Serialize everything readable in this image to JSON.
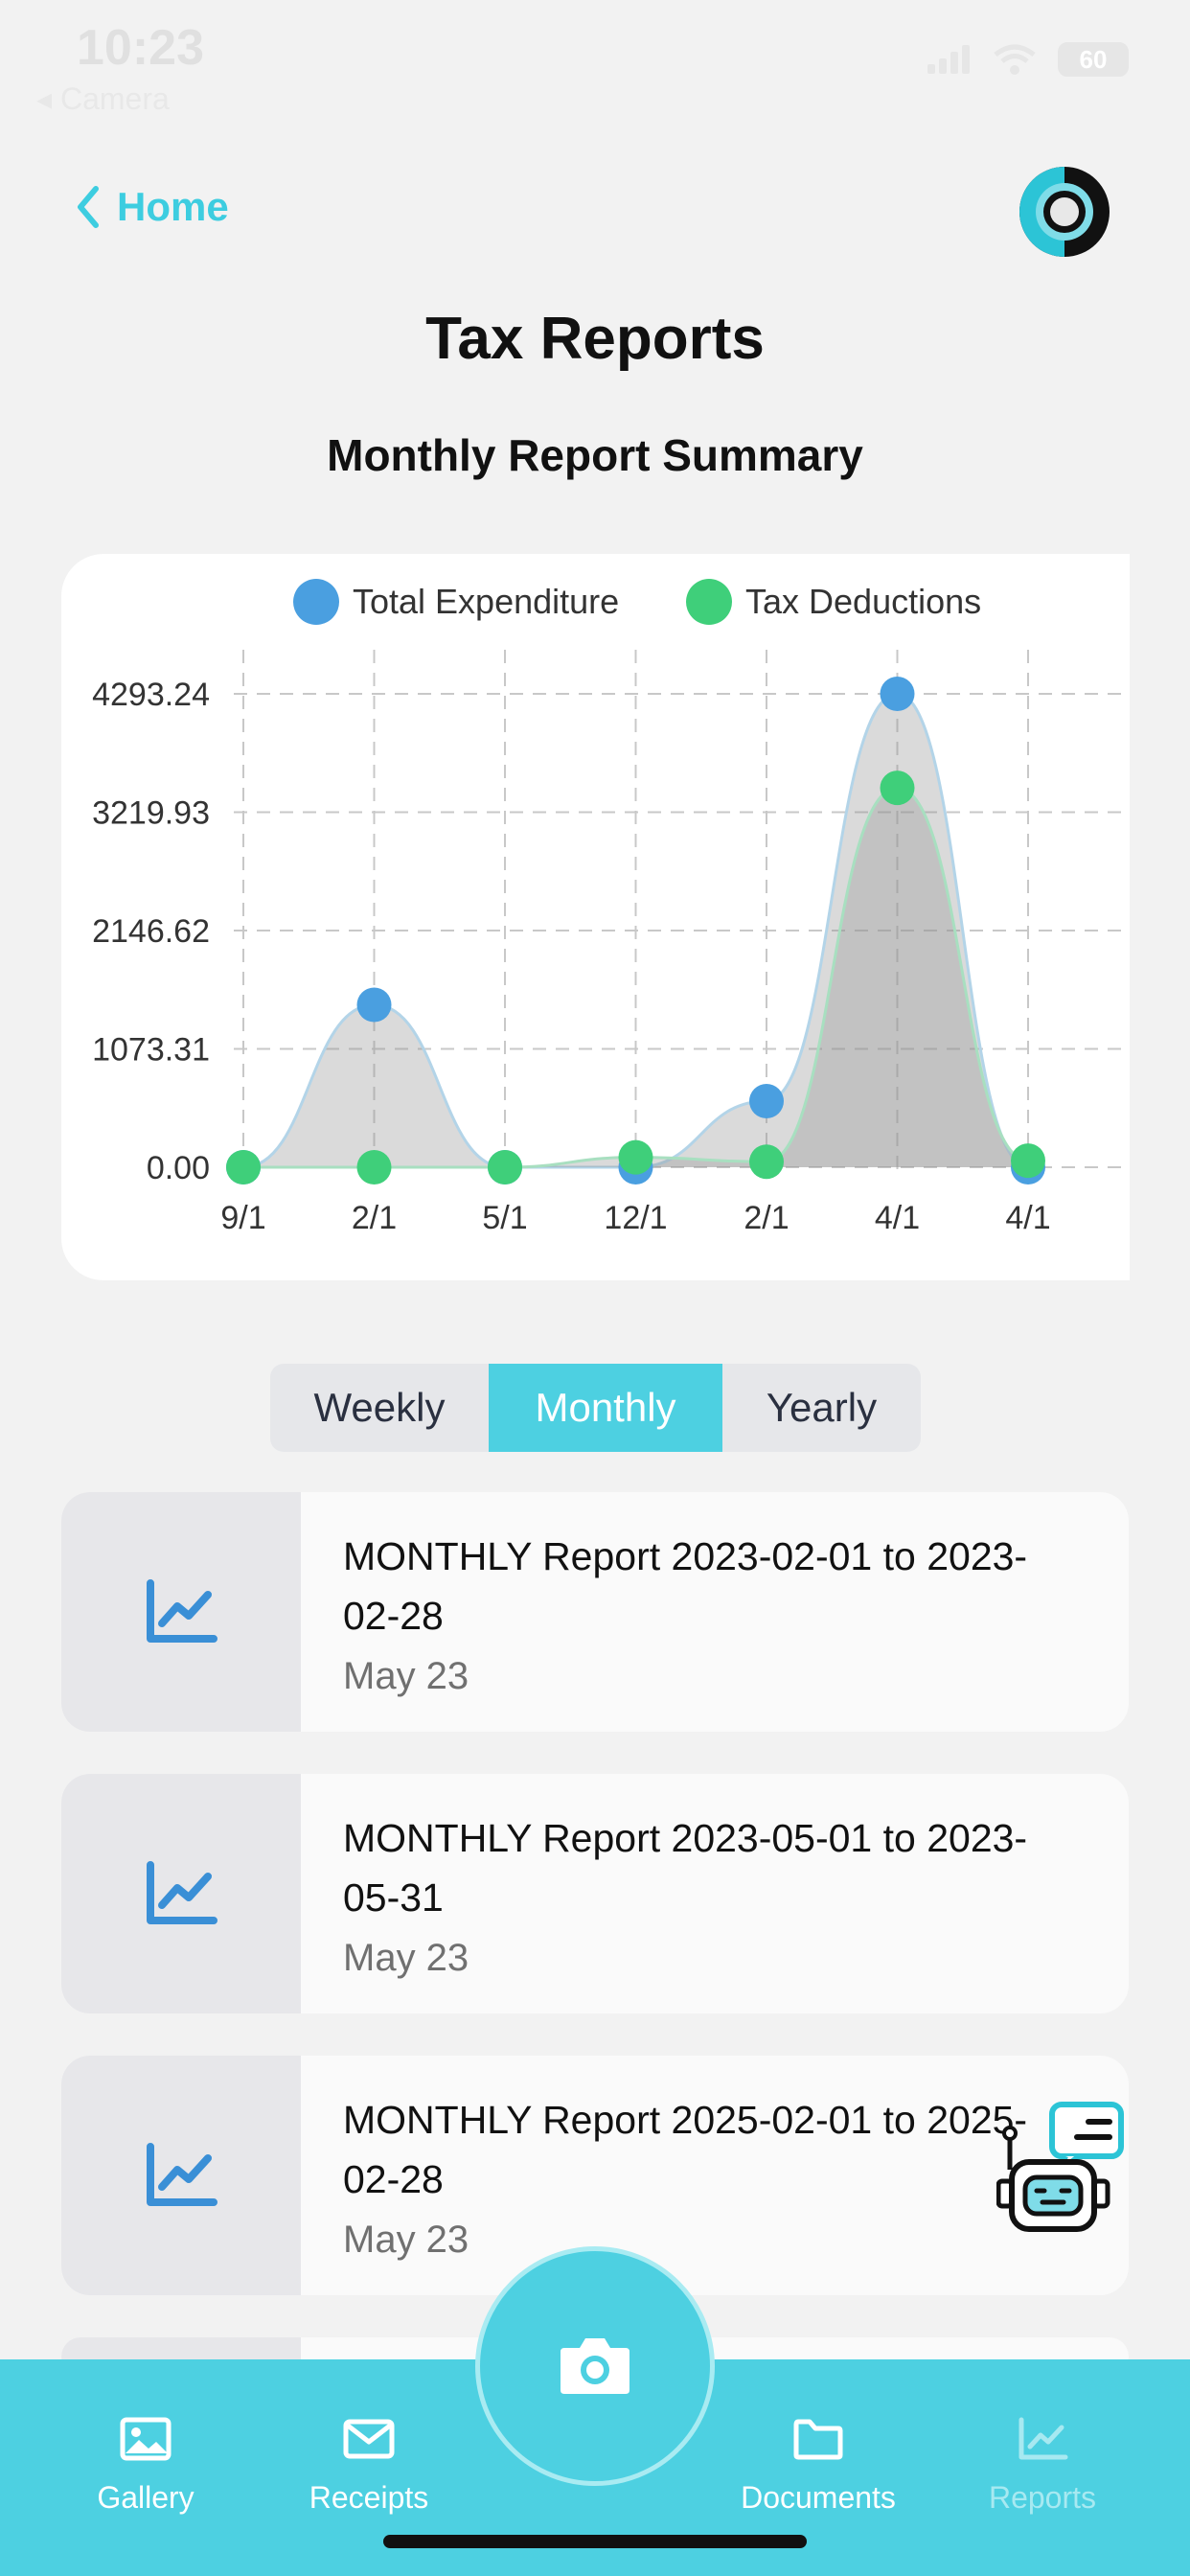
{
  "status": {
    "time": "10:23",
    "back_app": "Camera",
    "battery": "60"
  },
  "nav": {
    "back_label": "Home"
  },
  "header": {
    "title": "Tax Reports",
    "subtitle": "Monthly Report Summary"
  },
  "chart_data": {
    "type": "area",
    "categories": [
      "9/1",
      "2/1",
      "5/1",
      "12/1",
      "2/1",
      "4/1",
      "4/1"
    ],
    "series": [
      {
        "name": "Total Expenditure",
        "color": "#4a9fe0",
        "values": [
          0,
          1473,
          0,
          0,
          600,
          4293.24,
          0
        ]
      },
      {
        "name": "Tax Deductions",
        "color": "#3fcf7a",
        "values": [
          0,
          0,
          0,
          90,
          50,
          3440,
          60
        ]
      }
    ],
    "y_ticks": [
      "4293.24",
      "3219.93",
      "2146.62",
      "1073.31",
      "0.00"
    ],
    "ylim": [
      0,
      4293.24
    ],
    "legend": "top",
    "grid": true
  },
  "segments": {
    "items": [
      "Weekly",
      "Monthly",
      "Yearly"
    ],
    "active": "Monthly"
  },
  "reports": [
    {
      "title": "MONTHLY Report 2023-02-01 to 2023-02-28",
      "date": "May 23"
    },
    {
      "title": "MONTHLY Report 2023-05-01 to 2023-05-31",
      "date": "May 23"
    },
    {
      "title": "MONTHLY Report 2025-02-01 to 2025-02-28",
      "date": "May 23"
    }
  ],
  "tabbar": {
    "items": [
      {
        "label": "Gallery",
        "icon": "image-icon"
      },
      {
        "label": "Receipts",
        "icon": "envelope-icon"
      },
      {
        "label": "Documents",
        "icon": "folder-icon"
      },
      {
        "label": "Reports",
        "icon": "chart-icon"
      }
    ],
    "camera_icon": "camera-icon"
  },
  "colors": {
    "accent": "#4dd0e1",
    "link": "#3dcde0",
    "chart_icon": "#3a8fd6"
  }
}
